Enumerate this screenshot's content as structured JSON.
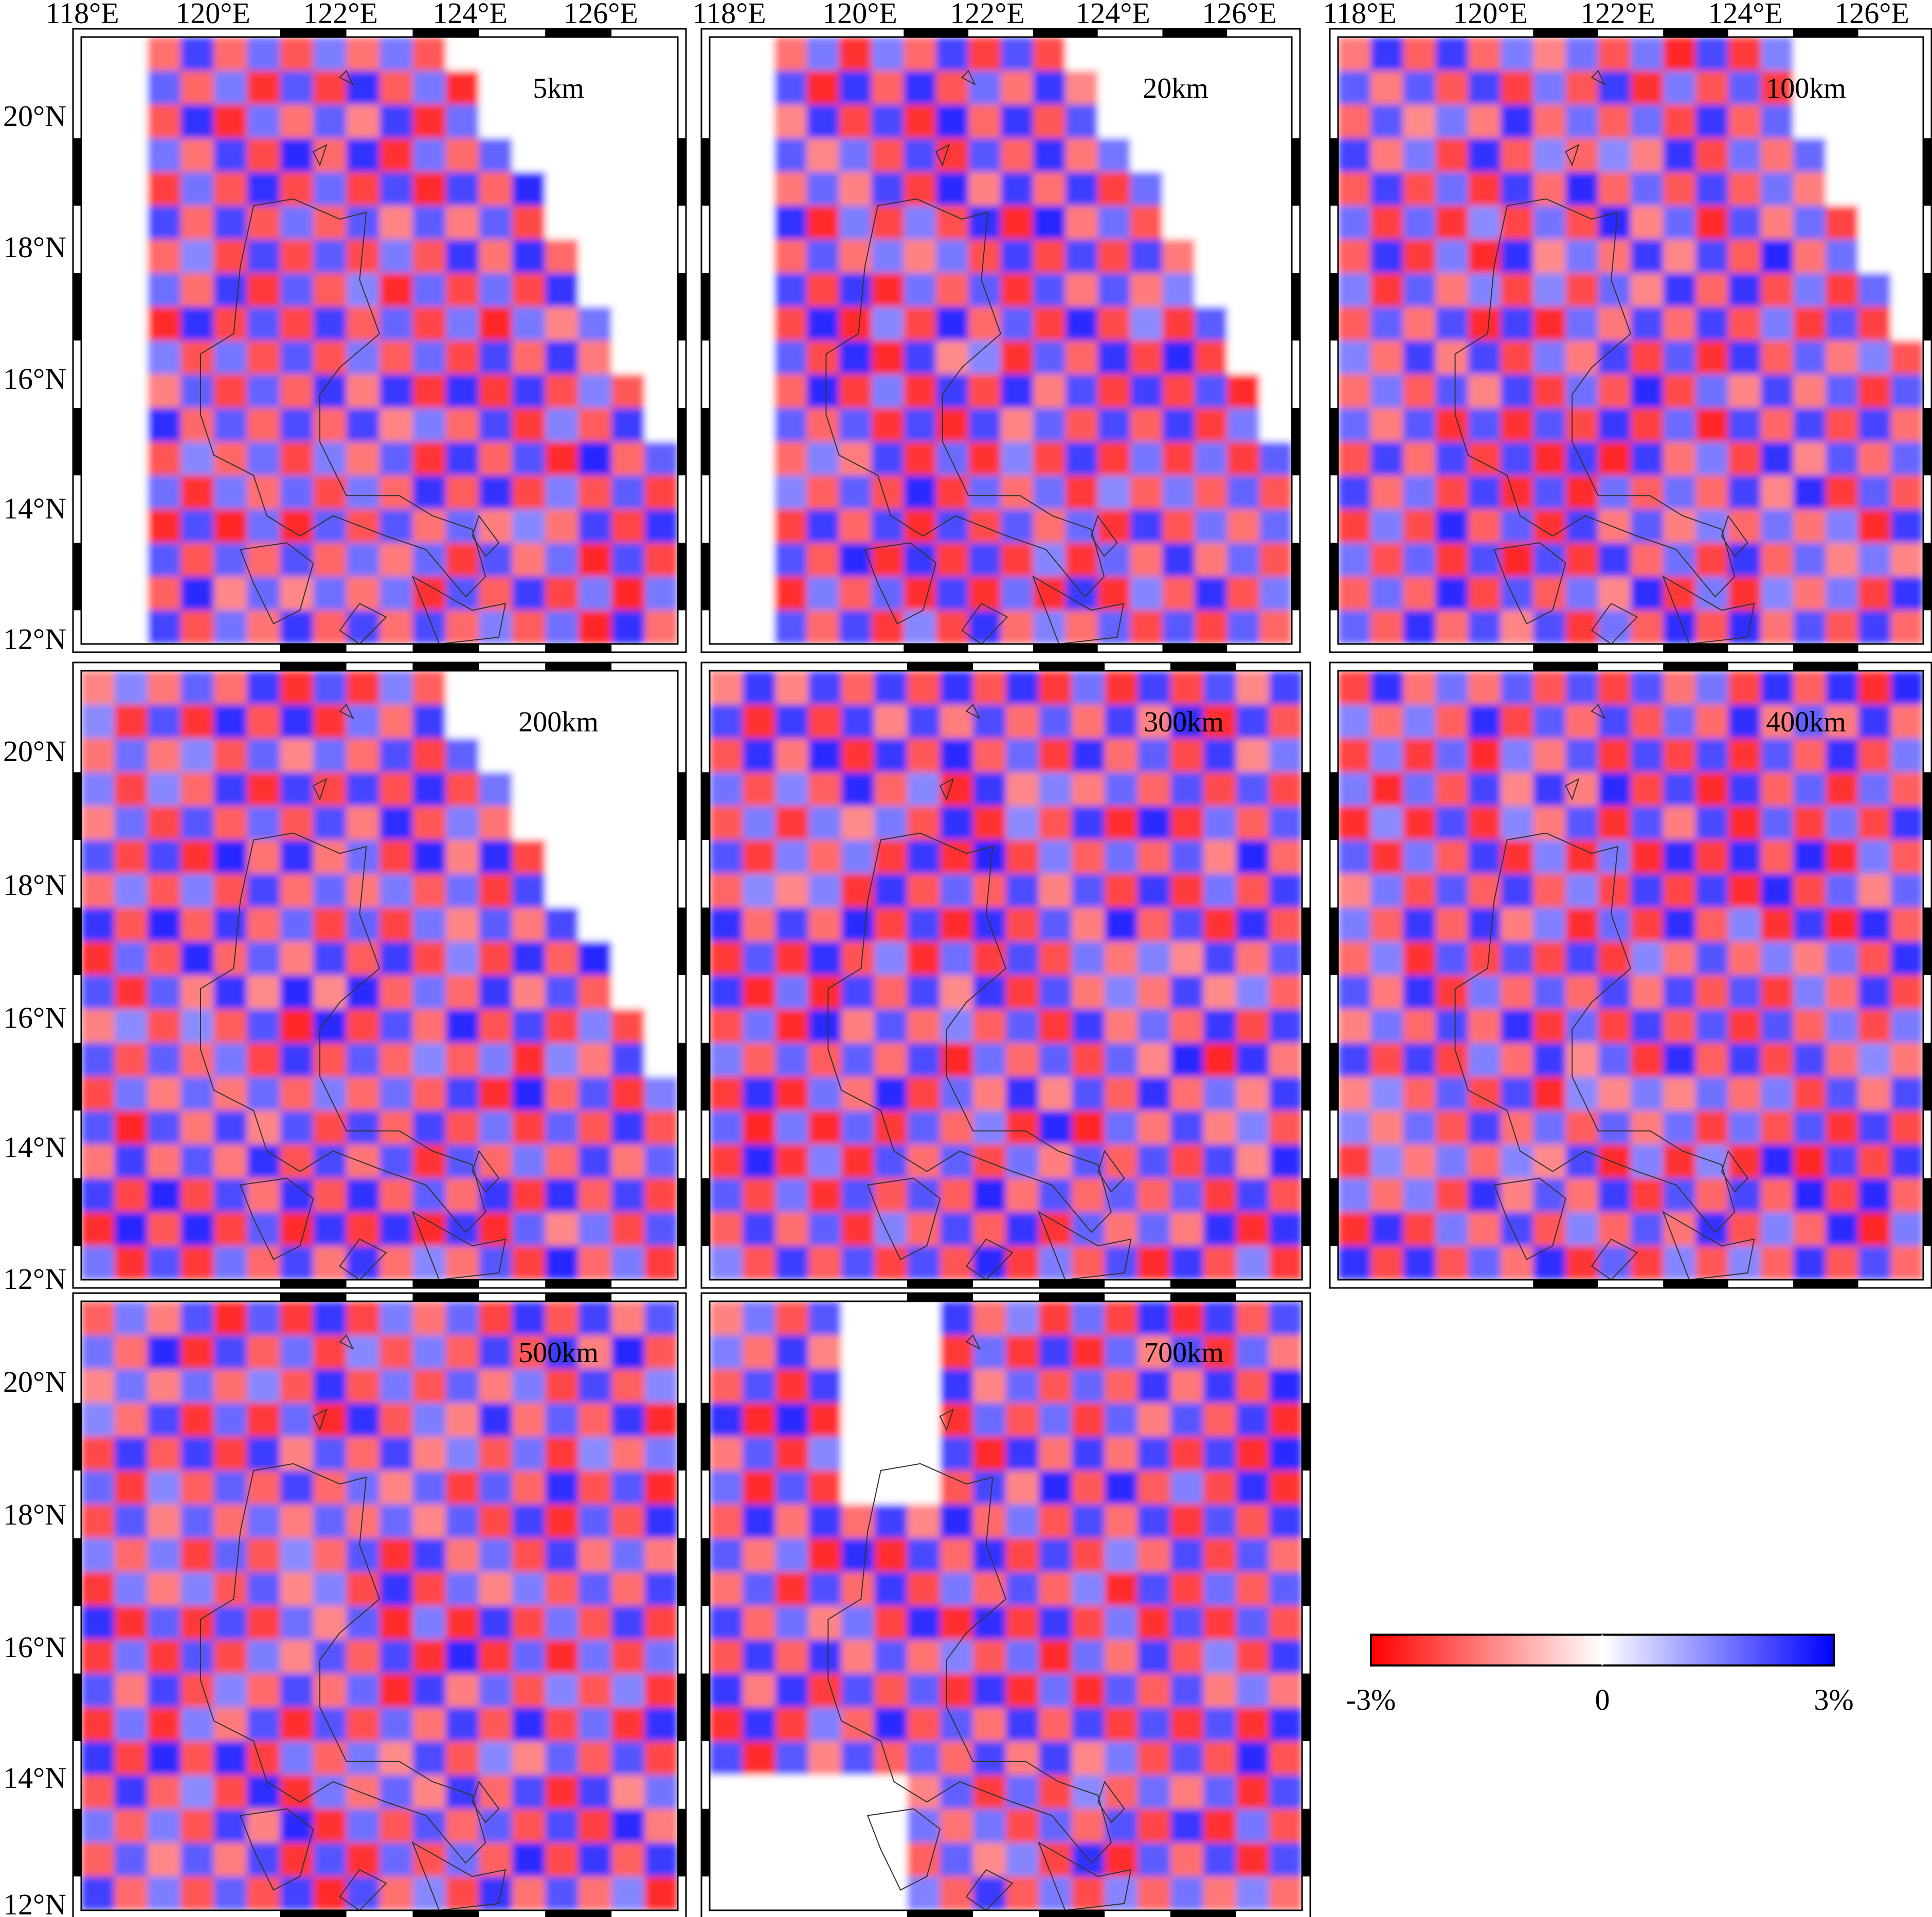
{
  "figure": {
    "lon_ticks": [
      "118°E",
      "120°E",
      "122°E",
      "124°E",
      "126°E"
    ],
    "lat_ticks": [
      "20°N",
      "18°N",
      "16°N",
      "14°N",
      "12°N"
    ],
    "lon_range": [
      118,
      127
    ],
    "lat_range": [
      12,
      21
    ],
    "grid_spacing_deg": 0.5,
    "colors": {
      "negative": "#ff0000",
      "zero": "#ffffff",
      "positive": "#0000ff"
    }
  },
  "panels": [
    {
      "id": "p1",
      "label": "5km"
    },
    {
      "id": "p2",
      "label": "20km"
    },
    {
      "id": "p3",
      "label": "100km"
    },
    {
      "id": "p4",
      "label": "200km"
    },
    {
      "id": "p5",
      "label": "300km"
    },
    {
      "id": "p6",
      "label": "400km"
    },
    {
      "id": "p7",
      "label": "500km"
    },
    {
      "id": "p8",
      "label": "700km"
    }
  ],
  "colorbar": {
    "min_label": "-3%",
    "mid_label": "0",
    "max_label": "3%",
    "range": [
      -3,
      3
    ],
    "unit": "%"
  }
}
